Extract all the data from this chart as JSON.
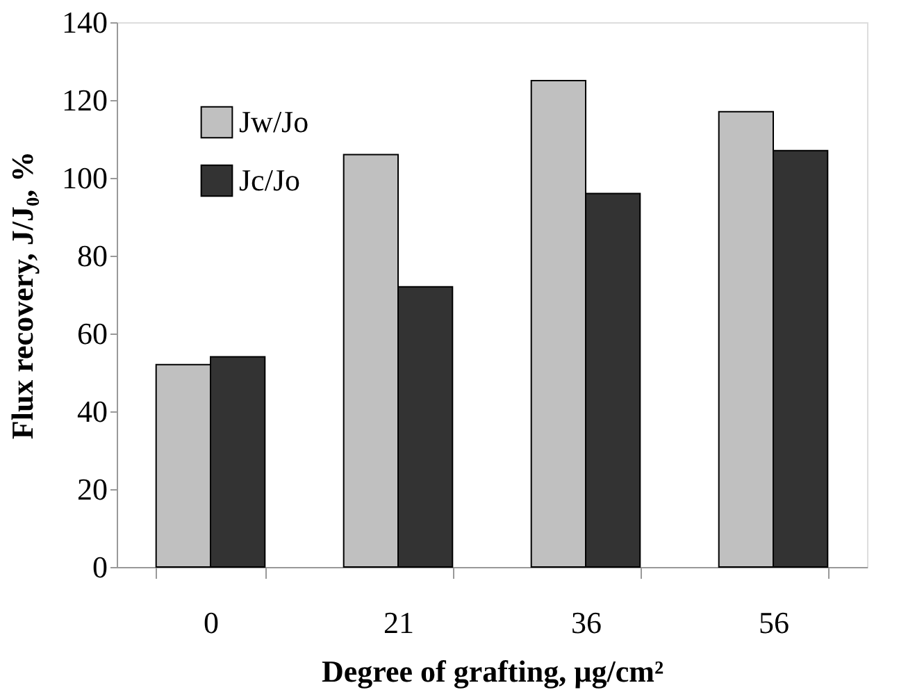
{
  "chart_data": {
    "type": "bar",
    "xlabel": "Degree of grafting, µg/cm²",
    "ylabel": "Flux recovery, J/J₀, %",
    "categories": [
      "0",
      "21",
      "36",
      "56"
    ],
    "series": [
      {
        "name": "Jw/Jo",
        "color": "#c0c0c0",
        "values": [
          52,
          106,
          125,
          117
        ]
      },
      {
        "name": "Jc/Jo",
        "color": "#333333",
        "values": [
          54,
          72,
          96,
          107
        ]
      }
    ],
    "ylim": [
      0,
      140
    ],
    "yticks": [
      0,
      20,
      40,
      60,
      80,
      100,
      120,
      140
    ],
    "grid": false,
    "legend": "top left"
  }
}
